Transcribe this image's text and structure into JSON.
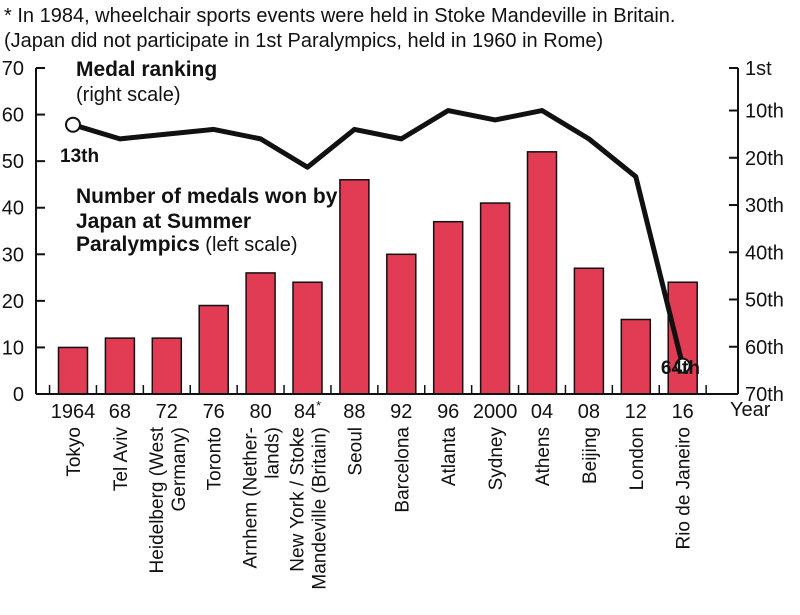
{
  "chart_data": {
    "type": "bar",
    "notes": [
      "* In 1984, wheelchair sports events were held in Stoke Mandeville in Britain.",
      "(Japan did not participate in 1st Paralympics, held in 1960 in Rome)"
    ],
    "categories": [
      "1964",
      "68",
      "72",
      "76",
      "80",
      "84*",
      "88",
      "92",
      "96",
      "2000",
      "04",
      "08",
      "12",
      "16"
    ],
    "cities": [
      [
        "Tokyo"
      ],
      [
        "Tel Aviv"
      ],
      [
        "Heidelberg (West",
        "Germany)"
      ],
      [
        "Toronto"
      ],
      [
        "Arnhem (Nether-",
        "lands)"
      ],
      [
        "New York / Stoke",
        "Mandeville (Britain)"
      ],
      [
        "Seoul"
      ],
      [
        "Barcelona"
      ],
      [
        "Atlanta"
      ],
      [
        "Sydney"
      ],
      [
        "Athens"
      ],
      [
        "Beijing"
      ],
      [
        "London"
      ],
      [
        "Rio de Janeiro"
      ]
    ],
    "xlabel": "Year",
    "series": [
      {
        "name": "Number of medals won by Japan at Summer Paralympics",
        "axis": "left",
        "values": [
          10,
          12,
          12,
          19,
          26,
          24,
          46,
          30,
          37,
          41,
          52,
          27,
          16,
          24
        ],
        "color": "#e23b54"
      },
      {
        "name": "Medal ranking",
        "axis": "right",
        "values": [
          13,
          16,
          15,
          14,
          16,
          22,
          14,
          16,
          10,
          12,
          10,
          16,
          24,
          64
        ],
        "color": "#111111"
      }
    ],
    "left_axis": {
      "ylim": [
        0,
        70
      ],
      "ticks": [
        "0",
        "10",
        "20",
        "30",
        "40",
        "50",
        "60",
        "70"
      ]
    },
    "right_axis": {
      "ylim": [
        1,
        70
      ],
      "ticks": [
        "1st",
        "10th",
        "20th",
        "30th",
        "40th",
        "50th",
        "60th",
        "70th"
      ],
      "tick_values": [
        1,
        10,
        20,
        30,
        40,
        50,
        60,
        70
      ]
    },
    "legend": {
      "ranking_title": "Medal ranking",
      "ranking_scale": "(right scale)",
      "medals_title_lines": [
        "Number of medals won by",
        "Japan at Summer"
      ],
      "medals_title_last": "Paralympics",
      "medals_scale": " (left scale)"
    },
    "annotations": {
      "first_rank": "13th",
      "last_rank": "64th"
    }
  }
}
